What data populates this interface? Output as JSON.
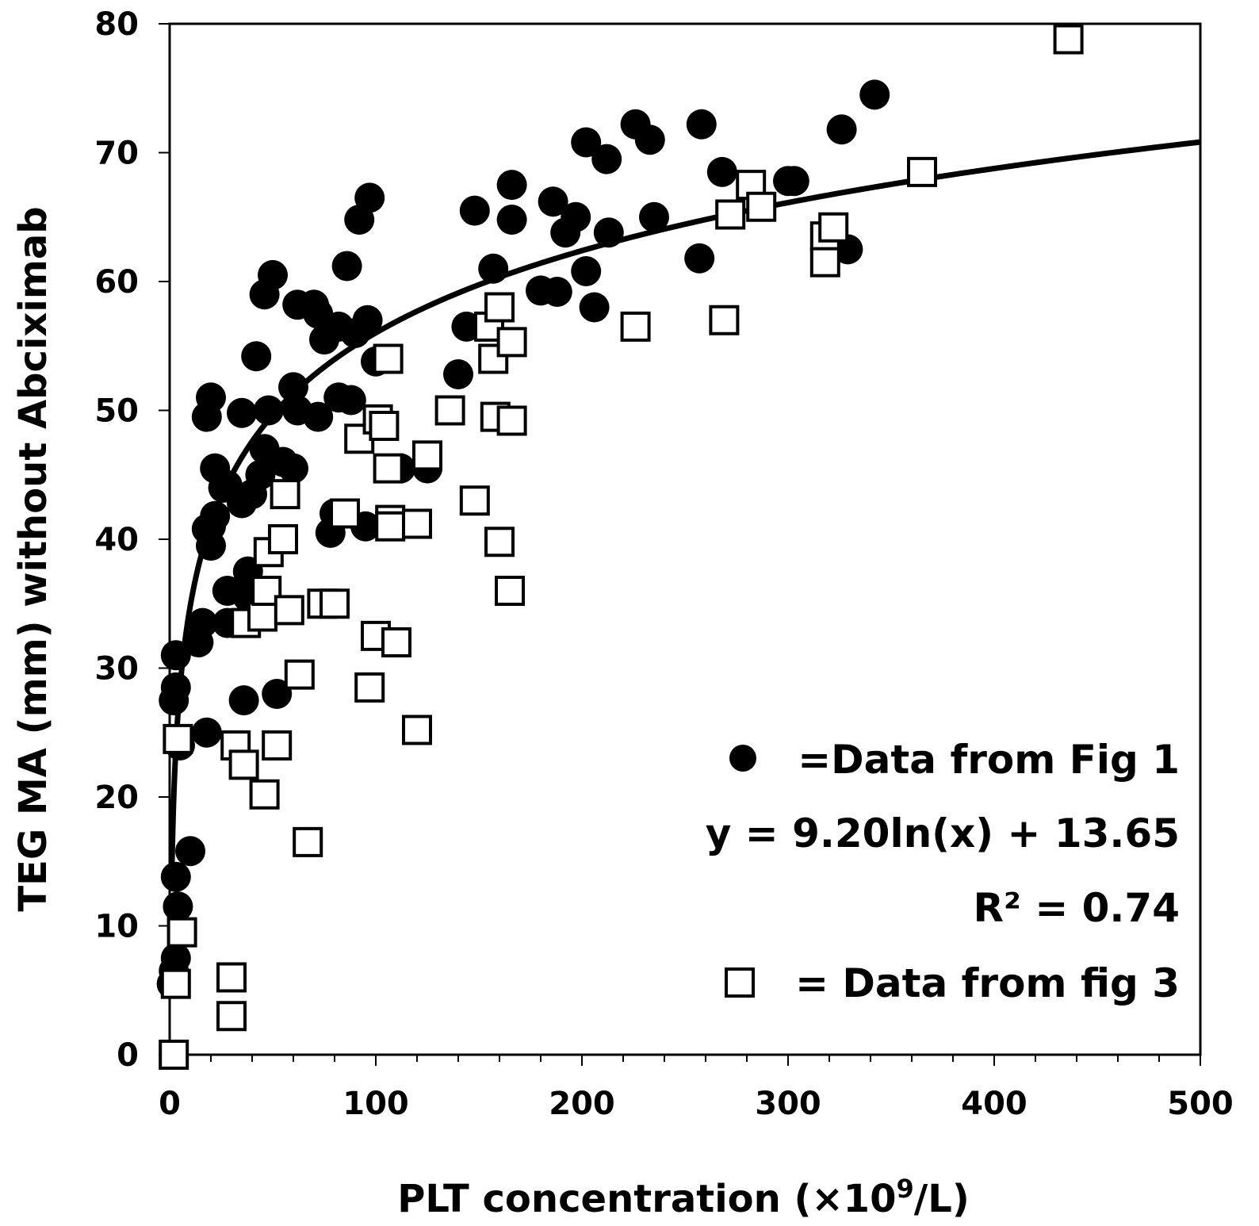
{
  "chart_data": {
    "type": "scatter",
    "title": "",
    "xlabel": "PLT concentration (×10",
    "xlabel_superscript": "9",
    "xlabel_suffix": "/L)",
    "ylabel": "TEG MA (mm) without Abciximab",
    "xlim": [
      0,
      500
    ],
    "ylim": [
      0,
      80
    ],
    "x_ticks": [
      0,
      100,
      200,
      300,
      400,
      500
    ],
    "y_ticks": [
      0,
      10,
      20,
      30,
      40,
      50,
      60,
      70,
      80
    ],
    "grid": false,
    "legend_position": "bottom-right",
    "series": [
      {
        "name": "=Data from Fig 1",
        "marker": "filled-circle",
        "color": "#000000",
        "points": [
          [
            1,
            5.5
          ],
          [
            2,
            6.5
          ],
          [
            3,
            7.5
          ],
          [
            4,
            11.5
          ],
          [
            3,
            13.8
          ],
          [
            10,
            15.8
          ],
          [
            2,
            27.5
          ],
          [
            3,
            28.5
          ],
          [
            3,
            31
          ],
          [
            5,
            24
          ],
          [
            18,
            25
          ],
          [
            14,
            32
          ],
          [
            16,
            33.5
          ],
          [
            20,
            39.5
          ],
          [
            20,
            41
          ],
          [
            22,
            41.8
          ],
          [
            18,
            40.8
          ],
          [
            22,
            45.5
          ],
          [
            26,
            44
          ],
          [
            28,
            44.2
          ],
          [
            18,
            49.5
          ],
          [
            20,
            51
          ],
          [
            35,
            49.8
          ],
          [
            48,
            50
          ],
          [
            28,
            36
          ],
          [
            28,
            33.5
          ],
          [
            38,
            35.5
          ],
          [
            38,
            37.5
          ],
          [
            35,
            42.8
          ],
          [
            40,
            43.5
          ],
          [
            44,
            45
          ],
          [
            46,
            47
          ],
          [
            55,
            46
          ],
          [
            60,
            45.5
          ],
          [
            36,
            27.5
          ],
          [
            52,
            28
          ],
          [
            42,
            54.2
          ],
          [
            46,
            59
          ],
          [
            50,
            60.5
          ],
          [
            62,
            58.2
          ],
          [
            70,
            58.2
          ],
          [
            72,
            57.5
          ],
          [
            75,
            55.5
          ],
          [
            82,
            56.5
          ],
          [
            60,
            51.8
          ],
          [
            62,
            50
          ],
          [
            72,
            49.5
          ],
          [
            82,
            51
          ],
          [
            88,
            50.8
          ],
          [
            80,
            42
          ],
          [
            78,
            40.5
          ],
          [
            95,
            41
          ],
          [
            86,
            61.2
          ],
          [
            92,
            64.8
          ],
          [
            97,
            66.5
          ],
          [
            96,
            57
          ],
          [
            90,
            56
          ],
          [
            100,
            53.8
          ],
          [
            112,
            45.5
          ],
          [
            125,
            45.5
          ],
          [
            140,
            52.8
          ],
          [
            144,
            56.5
          ],
          [
            148,
            65.5
          ],
          [
            157,
            61
          ],
          [
            166,
            67.5
          ],
          [
            166,
            64.8
          ],
          [
            180,
            59.3
          ],
          [
            188,
            59.2
          ],
          [
            186,
            66.2
          ],
          [
            192,
            63.8
          ],
          [
            197,
            65
          ],
          [
            202,
            60.8
          ],
          [
            206,
            58
          ],
          [
            202,
            70.8
          ],
          [
            212,
            69.5
          ],
          [
            213,
            63.8
          ],
          [
            226,
            72.2
          ],
          [
            233,
            71
          ],
          [
            235,
            65
          ],
          [
            258,
            72.2
          ],
          [
            257,
            61.8
          ],
          [
            268,
            68.5
          ],
          [
            300,
            67.8
          ],
          [
            303,
            67.8
          ],
          [
            326,
            71.8
          ],
          [
            329,
            62.5
          ],
          [
            342,
            74.5
          ]
        ]
      },
      {
        "name": "= Data from fig 3",
        "marker": "open-square",
        "color": "#000000",
        "points": [
          [
            2,
            0
          ],
          [
            3,
            5.5
          ],
          [
            6,
            9.5
          ],
          [
            4,
            24.5
          ],
          [
            30,
            3
          ],
          [
            30,
            6
          ],
          [
            32,
            24
          ],
          [
            36,
            22.5
          ],
          [
            46,
            20.2
          ],
          [
            52,
            24
          ],
          [
            37,
            33.5
          ],
          [
            45,
            34
          ],
          [
            47,
            36
          ],
          [
            48,
            39
          ],
          [
            55,
            40
          ],
          [
            56,
            43.5
          ],
          [
            58,
            34.5
          ],
          [
            63,
            29.5
          ],
          [
            67,
            16.5
          ],
          [
            74,
            35
          ],
          [
            80,
            35
          ],
          [
            85,
            42
          ],
          [
            92,
            47.8
          ],
          [
            97,
            28.5
          ],
          [
            100,
            32.5
          ],
          [
            101,
            49.3
          ],
          [
            104,
            48.8
          ],
          [
            106,
            45.5
          ],
          [
            106,
            54
          ],
          [
            107,
            41.5
          ],
          [
            107,
            41
          ],
          [
            110,
            32
          ],
          [
            120,
            41.2
          ],
          [
            120,
            25.2
          ],
          [
            125,
            46.5
          ],
          [
            136,
            50
          ],
          [
            148,
            43
          ],
          [
            155,
            56.5
          ],
          [
            157,
            54
          ],
          [
            158,
            49.5
          ],
          [
            160,
            58
          ],
          [
            160,
            39.8
          ],
          [
            166,
            55.3
          ],
          [
            166,
            49.2
          ],
          [
            165,
            36
          ],
          [
            226,
            56.5
          ],
          [
            269,
            57
          ],
          [
            272,
            65.2
          ],
          [
            282,
            67.5
          ],
          [
            287,
            65.8
          ],
          [
            318,
            63.5
          ],
          [
            318,
            61.5
          ],
          [
            322,
            64.2
          ],
          [
            365,
            68.5
          ],
          [
            436,
            78.8
          ]
        ]
      }
    ],
    "trendline": {
      "type": "logarithmic",
      "equation_text": "y = 9.20ln(x) + 13.65",
      "r_squared_text": "R² = 0.74",
      "a": 9.2,
      "b": 13.65
    }
  },
  "legend": {
    "fig1_label": "=Data from Fig 1",
    "equation": "y = 9.20ln(x) + 13.65",
    "r_squared": "R² = 0.74",
    "fig3_label": "= Data from fig 3"
  }
}
